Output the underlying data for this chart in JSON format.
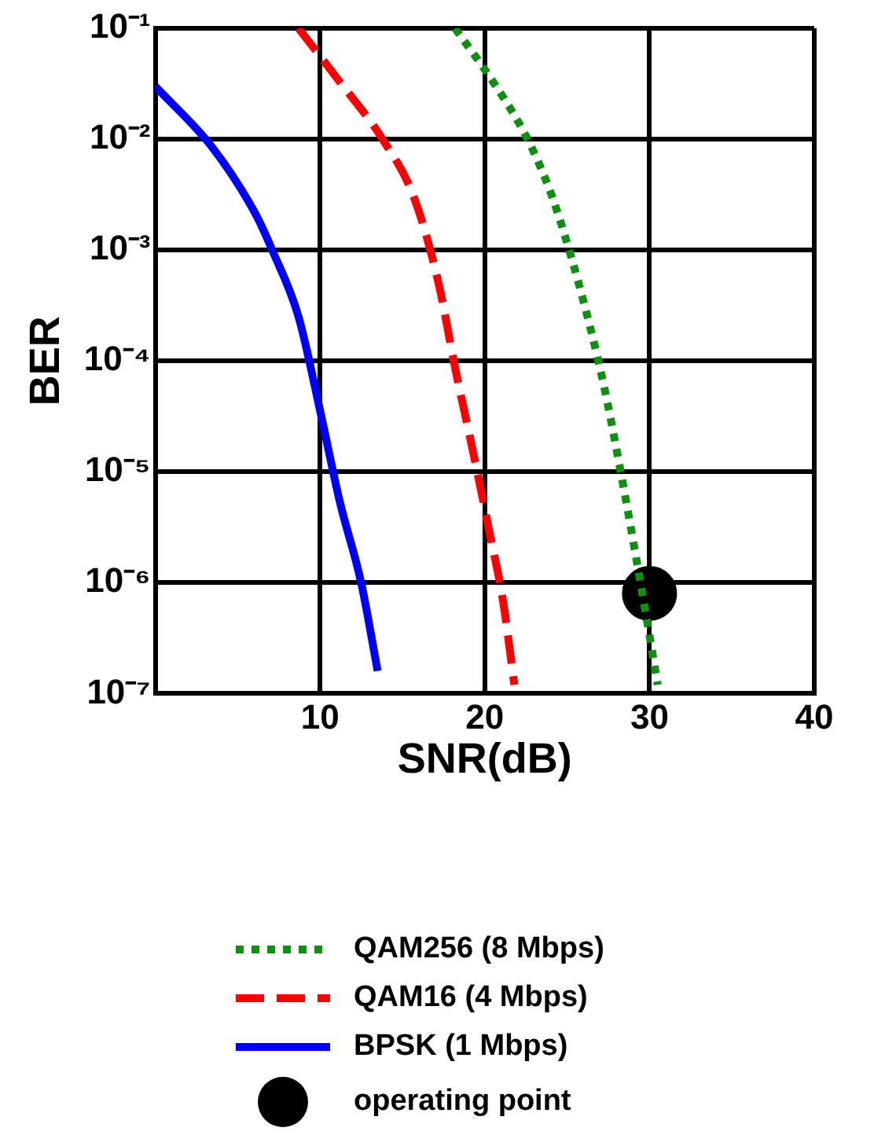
{
  "chart_data": {
    "type": "line",
    "xlabel": "SNR(dB)",
    "ylabel": "BER",
    "log": "y",
    "grid": true,
    "legend": "bottom",
    "xlim": [
      0,
      40
    ],
    "xticks": [
      10,
      20,
      30,
      40
    ],
    "ylim": [
      1e-07,
      0.1
    ],
    "yticks": [
      {
        "value": 1e-07,
        "label": "10⁻⁷"
      },
      {
        "value": 1e-06,
        "label": "10⁻⁶"
      },
      {
        "value": 1e-05,
        "label": "10⁻⁵"
      },
      {
        "value": 0.0001,
        "label": "10⁻⁴"
      },
      {
        "value": 0.001,
        "label": "10⁻³"
      },
      {
        "value": 0.01,
        "label": "10⁻²"
      },
      {
        "value": 0.1,
        "label": "10⁻¹"
      }
    ],
    "series": [
      {
        "name": "QAM256 (8 Mbps)",
        "color": "#109010",
        "line_style": "dotted",
        "marker": "none",
        "x": [
          18.2,
          20.5,
          22.6,
          24.1,
          25.7,
          27.2,
          28.2,
          29.1,
          29.8,
          30.5
        ],
        "values": [
          0.1,
          0.033,
          0.01,
          0.003,
          0.0005,
          6.3e-05,
          1.1e-05,
          2e-06,
          5e-07,
          1.2e-07
        ]
      },
      {
        "name": "QAM16 (4 Mbps)",
        "color": "#ff0000",
        "line_style": "dashed",
        "marker": "none",
        "x": [
          8.7,
          11.2,
          13.8,
          15.7,
          17.2,
          18.2,
          19.3,
          20.3,
          21.1,
          21.8
        ],
        "values": [
          0.1,
          0.033,
          0.01,
          0.003,
          0.0005,
          8.7e-05,
          1.5e-05,
          2.8e-06,
          7e-07,
          1.2e-07
        ]
      },
      {
        "name": "BPSK (1 Mbps)",
        "color": "#0000ff",
        "line_style": "solid",
        "marker": "none",
        "x": [
          0,
          3.5,
          6.1,
          7.1,
          8.7,
          10,
          11.2,
          12.5,
          13.5
        ],
        "values": [
          0.03,
          0.0083,
          0.0021,
          0.001,
          0.00025,
          3.6e-05,
          5.4e-06,
          1e-06,
          1.6e-07
        ]
      },
      {
        "name": "operating point",
        "type": "scatter",
        "color": "#000000",
        "marker": "circle",
        "x": [
          30
        ],
        "values": [
          8e-07
        ]
      }
    ]
  }
}
